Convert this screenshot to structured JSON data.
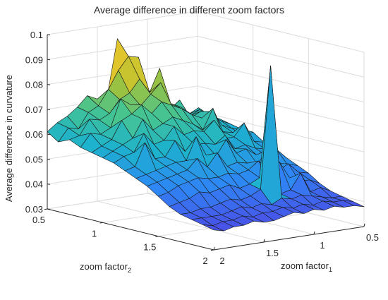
{
  "chart_data": {
    "type": "surface",
    "title": "Average difference in different zoom factors",
    "xlabel": "zoom factor",
    "xlabel_sub": "1",
    "ylabel": "zoom factor",
    "ylabel_sub": "2",
    "zlabel": "Average difference in curvature",
    "x_range": [
      0.5,
      2
    ],
    "y_range": [
      0.5,
      2
    ],
    "z_range": [
      0.03,
      0.1
    ],
    "x_ticks": [
      "0.5",
      "1",
      "1.5",
      "2"
    ],
    "y_ticks": [
      "0.5",
      "1",
      "1.5",
      "2"
    ],
    "z_ticks": [
      "0.03",
      "0.04",
      "0.05",
      "0.06",
      "0.07",
      "0.08",
      "0.09",
      "0.1"
    ],
    "grid": true,
    "colormap": "parula",
    "colors": [
      "#3e26a8",
      "#4a5ef2",
      "#2d8ef0",
      "#1ab2c7",
      "#4cc38f",
      "#b6c12f",
      "#f5d22a",
      "#f9fb15"
    ],
    "grid_size": [
      16,
      16
    ],
    "x_values": [
      0.5,
      0.6,
      0.7,
      0.8,
      0.9,
      1.0,
      1.1,
      1.2,
      1.3,
      1.4,
      1.5,
      1.6,
      1.7,
      1.8,
      1.9,
      2.0
    ],
    "y_values": [
      0.5,
      0.6,
      0.7,
      0.8,
      0.9,
      1.0,
      1.1,
      1.2,
      1.3,
      1.4,
      1.5,
      1.6,
      1.7,
      1.8,
      1.9,
      2.0
    ],
    "z_values": [
      [
        0.061,
        0.058,
        0.059,
        0.061,
        0.064,
        0.067,
        0.071,
        0.072,
        0.094,
        0.072,
        0.071,
        0.073,
        0.069,
        0.066,
        0.064,
        0.061
      ],
      [
        0.058,
        0.063,
        0.061,
        0.067,
        0.062,
        0.071,
        0.068,
        0.087,
        0.088,
        0.083,
        0.076,
        0.07,
        0.068,
        0.062,
        0.063,
        0.058
      ],
      [
        0.059,
        0.061,
        0.064,
        0.062,
        0.069,
        0.066,
        0.083,
        0.074,
        0.08,
        0.075,
        0.073,
        0.068,
        0.066,
        0.067,
        0.061,
        0.06
      ],
      [
        0.058,
        0.06,
        0.062,
        0.065,
        0.063,
        0.068,
        0.07,
        0.079,
        0.075,
        0.071,
        0.072,
        0.075,
        0.064,
        0.062,
        0.063,
        0.058
      ],
      [
        0.057,
        0.058,
        0.06,
        0.066,
        0.064,
        0.066,
        0.069,
        0.071,
        0.073,
        0.069,
        0.073,
        0.07,
        0.068,
        0.061,
        0.059,
        0.057
      ],
      [
        0.057,
        0.056,
        0.058,
        0.059,
        0.069,
        0.061,
        0.064,
        0.066,
        0.068,
        0.066,
        0.064,
        0.069,
        0.062,
        0.06,
        0.058,
        0.056
      ],
      [
        0.054,
        0.055,
        0.063,
        0.058,
        0.058,
        0.066,
        0.062,
        0.063,
        0.062,
        0.066,
        0.061,
        0.06,
        0.065,
        0.058,
        0.057,
        0.055
      ],
      [
        0.052,
        0.053,
        0.054,
        0.056,
        0.055,
        0.061,
        0.058,
        0.059,
        0.059,
        0.057,
        0.062,
        0.056,
        0.056,
        0.063,
        0.054,
        0.053
      ],
      [
        0.05,
        0.054,
        0.052,
        0.053,
        0.056,
        0.055,
        0.061,
        0.055,
        0.056,
        0.064,
        0.055,
        0.055,
        0.054,
        0.053,
        0.052,
        0.051
      ],
      [
        0.048,
        0.049,
        0.05,
        0.056,
        0.051,
        0.052,
        0.053,
        0.052,
        0.058,
        0.053,
        0.057,
        0.053,
        0.052,
        0.051,
        0.05,
        0.049
      ],
      [
        0.046,
        0.047,
        0.051,
        0.049,
        0.05,
        0.054,
        0.051,
        0.05,
        0.051,
        0.05,
        0.05,
        0.051,
        0.05,
        0.049,
        0.047,
        0.046
      ],
      [
        0.043,
        0.045,
        0.045,
        0.047,
        0.054,
        0.047,
        0.049,
        0.047,
        0.046,
        0.048,
        0.047,
        0.046,
        0.047,
        0.045,
        0.044,
        0.043
      ],
      [
        0.041,
        0.043,
        0.042,
        0.05,
        0.044,
        0.043,
        0.095,
        0.046,
        0.044,
        0.043,
        0.044,
        0.043,
        0.042,
        0.042,
        0.041,
        0.041
      ],
      [
        0.04,
        0.04,
        0.041,
        0.042,
        0.043,
        0.042,
        0.043,
        0.041,
        0.042,
        0.041,
        0.042,
        0.041,
        0.04,
        0.04,
        0.04,
        0.04
      ],
      [
        0.039,
        0.04,
        0.04,
        0.041,
        0.04,
        0.041,
        0.04,
        0.041,
        0.04,
        0.04,
        0.039,
        0.04,
        0.039,
        0.039,
        0.038,
        0.039
      ],
      [
        0.038,
        0.039,
        0.039,
        0.04,
        0.039,
        0.04,
        0.039,
        0.04,
        0.039,
        0.038,
        0.038,
        0.039,
        0.038,
        0.038,
        0.037,
        0.038
      ]
    ]
  }
}
